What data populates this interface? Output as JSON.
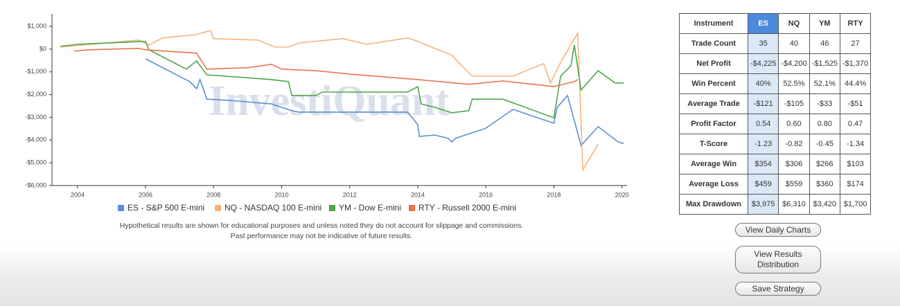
{
  "chart_data": {
    "type": "line",
    "watermark": "InvestiQuant",
    "xlim": [
      2003.25,
      2020.15
    ],
    "xticks": [
      2004,
      2006,
      2008,
      2010,
      2012,
      2014,
      2016,
      2018,
      2020
    ],
    "ylim": [
      -6000,
      1550
    ],
    "yticks": [
      {
        "value": 1000,
        "label": "$1,000"
      },
      {
        "value": 0,
        "label": "$0"
      },
      {
        "value": -1000,
        "label": "-$1,000"
      },
      {
        "value": -2000,
        "label": "-$2,000"
      },
      {
        "value": -3000,
        "label": "-$3,000"
      },
      {
        "value": -4000,
        "label": "-$4,000"
      },
      {
        "value": -5000,
        "label": "-$5,000"
      },
      {
        "value": -6000,
        "label": "-$6,000"
      }
    ],
    "series": [
      {
        "name": "ES - S&P 500 E-mini",
        "color": "#5b8fd1",
        "x": [
          2006.0,
          2007.3,
          2007.5,
          2007.6,
          2007.8,
          2008.5,
          2009.7,
          2010.3,
          2010.5,
          2012.5,
          2013.7,
          2014.0,
          2014.05,
          2014.5,
          2014.9,
          2015.0,
          2015.1,
          2016.0,
          2016.5,
          2016.8,
          2018.0,
          2018.1,
          2018.4,
          2018.8,
          2019.3,
          2019.9,
          2020.05
        ],
        "values": [
          -430,
          -1430,
          -1740,
          -1340,
          -2200,
          -2260,
          -2410,
          -2710,
          -2770,
          -2770,
          -2770,
          -3320,
          -3840,
          -3780,
          -3930,
          -4090,
          -3930,
          -3480,
          -2960,
          -2650,
          -3260,
          -2560,
          -2040,
          -4240,
          -3410,
          -4090,
          -4150
        ]
      },
      {
        "name": "NQ - NASDAQ 100 E-mini",
        "color": "#f7b27a",
        "x": [
          2003.5,
          2005.8,
          2006.1,
          2006.5,
          2007.5,
          2007.9,
          2008.0,
          2009.3,
          2009.8,
          2010.2,
          2010.5,
          2011.8,
          2012.5,
          2013.7,
          2014.0,
          2015.0,
          2015.3,
          2015.6,
          2016.8,
          2017.7,
          2017.9,
          2018.2,
          2018.7,
          2018.85,
          2019.3
        ],
        "values": [
          90,
          400,
          180,
          490,
          640,
          820,
          460,
          400,
          90,
          90,
          270,
          460,
          210,
          490,
          340,
          -270,
          -730,
          -1190,
          -1190,
          -640,
          -1490,
          -580,
          700,
          -5300,
          -4180
        ]
      },
      {
        "name": "YM - Dow E-mini",
        "color": "#4ca64c",
        "x": [
          2003.5,
          2004.0,
          2006.0,
          2006.1,
          2007.2,
          2007.5,
          2007.8,
          2009.7,
          2010.2,
          2010.3,
          2011.0,
          2011.2,
          2013.7,
          2014.0,
          2014.1,
          2014.5,
          2015.0,
          2015.5,
          2015.6,
          2016.5,
          2018.0,
          2018.2,
          2018.5,
          2018.6,
          2018.8,
          2019.3,
          2019.8,
          2020.05
        ],
        "values": [
          120,
          210,
          340,
          -30,
          -880,
          -520,
          -1130,
          -1340,
          -1430,
          -2040,
          -2040,
          -1890,
          -1890,
          -1650,
          -2410,
          -2560,
          -2800,
          -2710,
          -2200,
          -2200,
          -3020,
          -1190,
          -730,
          180,
          -1800,
          -950,
          -1490,
          -1490
        ]
      },
      {
        "name": "RTY - Russell 2000 E-mini",
        "color": "#e8734a",
        "x": [
          2003.9,
          2004.3,
          2005.8,
          2006.0,
          2007.5,
          2007.8,
          2009.0,
          2009.7,
          2010.0,
          2011.0,
          2012.0,
          2014.0,
          2015.5,
          2016.5,
          2018.0,
          2018.6,
          2018.7
        ],
        "values": [
          -90,
          -30,
          30,
          -30,
          -180,
          -880,
          -820,
          -670,
          -880,
          -950,
          -1100,
          -1340,
          -1550,
          -1400,
          -1650,
          -1430,
          -1340
        ]
      }
    ]
  },
  "disclaimer": [
    "Hypothetical results are shown for educational purposes and unless noted they do not account for slippage and commissions.",
    "Past performance may not be indicative of future results."
  ],
  "table": {
    "header": [
      "Instrument",
      "ES",
      "NQ",
      "YM",
      "RTY"
    ],
    "rows": [
      [
        "Trade Count",
        "35",
        "40",
        "46",
        "27"
      ],
      [
        "Net Profit",
        "-$4,225",
        "-$4,200",
        "-$1,525",
        "-$1,370"
      ],
      [
        "Win Percent",
        "40%",
        "52.5%",
        "52.1%",
        "44.4%"
      ],
      [
        "Average Trade",
        "-$121",
        "-$105",
        "-$33",
        "-$51"
      ],
      [
        "Profit Factor",
        "0.54",
        "0.60",
        "0.80",
        "0.47"
      ],
      [
        "T-Score",
        "-1.23",
        "-0.82",
        "-0.45",
        "-1.34"
      ],
      [
        "Average Win",
        "$354",
        "$306",
        "$266",
        "$103"
      ],
      [
        "Average Loss",
        "$459",
        "$559",
        "$360",
        "$174"
      ],
      [
        "Max Drawdown",
        "$3,975",
        "$6,310",
        "$3,420",
        "$1,700"
      ]
    ]
  },
  "buttons": [
    "View Daily Charts",
    "View Results Distribution",
    "Save Strategy"
  ]
}
